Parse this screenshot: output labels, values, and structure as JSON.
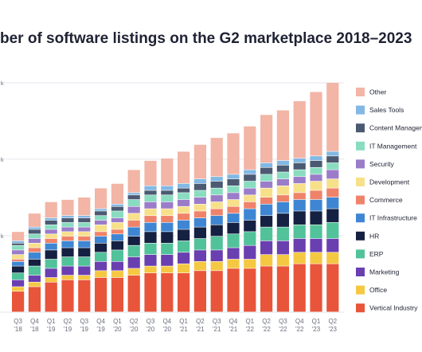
{
  "chart_data": {
    "type": "bar",
    "stacked": true,
    "title": "ber of software listings on the G2 marketplace 2018–2023",
    "categories": [
      [
        "Q3",
        "'18"
      ],
      [
        "Q4",
        "'18"
      ],
      [
        "Q1",
        "'19"
      ],
      [
        "Q2",
        "'19"
      ],
      [
        "Q3",
        "'19"
      ],
      [
        "Q4",
        "'19"
      ],
      [
        "Q1",
        "'20"
      ],
      [
        "Q2",
        "'20"
      ],
      [
        "Q3",
        "'20"
      ],
      [
        "Q4",
        "'20"
      ],
      [
        "Q1",
        "'21"
      ],
      [
        "Q2",
        "'21"
      ],
      [
        "Q3",
        "'21"
      ],
      [
        "Q4",
        "'21"
      ],
      [
        "Q1",
        "'22"
      ],
      [
        "Q2",
        "'22"
      ],
      [
        "Q3",
        "'22"
      ],
      [
        "Q4",
        "'22"
      ],
      [
        "Q1",
        "'23"
      ],
      [
        "Q2",
        "'23"
      ]
    ],
    "y_tick_labels": [
      "k",
      "k",
      "k",
      ""
    ],
    "ylim": [
      0,
      100
    ],
    "grid": true,
    "legend_position": "right",
    "series": [
      {
        "name": "Vertical Industry",
        "color": "#e8553a",
        "values": [
          9,
          11,
          13,
          14,
          14,
          15,
          15,
          16,
          17,
          17,
          17,
          18,
          18,
          19,
          19,
          20,
          20,
          21,
          21,
          21
        ]
      },
      {
        "name": "Office",
        "color": "#f5c842",
        "values": [
          2,
          2,
          2,
          2,
          2,
          3,
          3,
          3,
          3,
          3,
          4,
          4,
          4,
          4,
          4,
          5,
          5,
          5,
          5,
          5
        ]
      },
      {
        "name": "Marketing",
        "color": "#6a3fb0",
        "values": [
          3,
          3,
          4,
          4,
          4,
          4,
          4,
          5,
          5,
          5,
          5,
          5,
          5,
          5,
          6,
          6,
          6,
          6,
          6,
          6
        ]
      },
      {
        "name": "ERP",
        "color": "#52c29a",
        "values": [
          3,
          4,
          4,
          4,
          4,
          4,
          5,
          5,
          5,
          5,
          5,
          5,
          6,
          6,
          6,
          6,
          6,
          6,
          6,
          7
        ]
      },
      {
        "name": "HR",
        "color": "#152142",
        "values": [
          3,
          3,
          4,
          4,
          4,
          4,
          4,
          4,
          5,
          5,
          5,
          5,
          5,
          5,
          5,
          5,
          6,
          6,
          6,
          6
        ]
      },
      {
        "name": "IT Infrastructure",
        "color": "#3e86d3",
        "values": [
          2,
          3,
          3,
          3,
          3,
          3,
          3,
          4,
          4,
          4,
          4,
          4,
          4,
          4,
          5,
          5,
          5,
          5,
          5,
          5
        ]
      },
      {
        "name": "Commerce",
        "color": "#ef836a",
        "values": [
          1,
          2,
          2,
          2,
          2,
          2,
          2,
          3,
          3,
          3,
          3,
          3,
          3,
          3,
          3,
          3,
          3,
          3,
          4,
          4
        ]
      },
      {
        "name": "Development",
        "color": "#f7e08a",
        "values": [
          2,
          2,
          2,
          2,
          2,
          3,
          3,
          3,
          3,
          3,
          3,
          3,
          3,
          3,
          3,
          4,
          4,
          4,
          4,
          4
        ]
      },
      {
        "name": "Security",
        "color": "#9b7cc9",
        "values": [
          2,
          2,
          2,
          2,
          2,
          2,
          2,
          3,
          3,
          3,
          3,
          3,
          3,
          3,
          3,
          3,
          3,
          3,
          3,
          4
        ]
      },
      {
        "name": "IT Management",
        "color": "#89dcc0",
        "values": [
          2,
          2,
          2,
          2,
          2,
          2,
          3,
          3,
          3,
          3,
          3,
          3,
          3,
          3,
          3,
          3,
          3,
          3,
          3,
          3
        ]
      },
      {
        "name": "Content Management",
        "color": "#4b5a72",
        "values": [
          1,
          2,
          2,
          2,
          2,
          2,
          2,
          2,
          2,
          2,
          2,
          3,
          3,
          3,
          3,
          3,
          3,
          3,
          3,
          3
        ]
      },
      {
        "name": "Sales Tools",
        "color": "#82b8e4",
        "values": [
          1,
          1,
          1,
          1,
          1,
          1,
          1,
          1,
          2,
          2,
          2,
          2,
          2,
          2,
          2,
          2,
          2,
          2,
          2,
          2
        ]
      },
      {
        "name": "Other",
        "color": "#f2b5a6",
        "values": [
          4,
          6,
          7,
          7,
          8,
          9,
          9,
          10,
          11,
          12,
          14,
          15,
          17,
          18,
          19,
          21,
          22,
          25,
          28,
          30
        ]
      }
    ]
  }
}
